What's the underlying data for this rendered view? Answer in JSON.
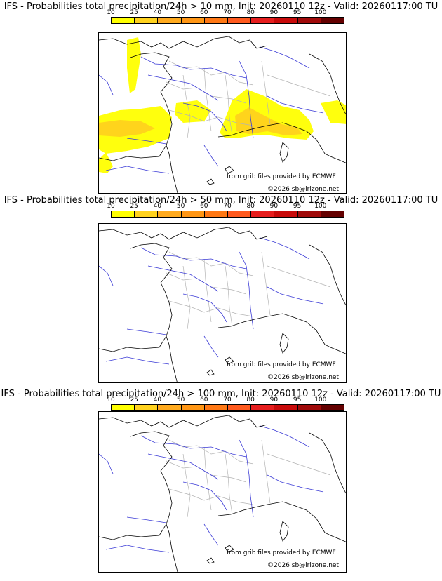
{
  "scale": {
    "labels": [
      "10",
      "25",
      "40",
      "50",
      "60",
      "70",
      "80",
      "90",
      "95",
      "100"
    ],
    "colors": [
      "#ffff00",
      "#ffd21e",
      "#ffaa1e",
      "#ff9614",
      "#ff7814",
      "#ff5a1e",
      "#e61e1e",
      "#c80a0a",
      "#a00a0a",
      "#640000"
    ]
  },
  "panels": [
    {
      "title": "IFS - Probabilities total precipitation/24h > 10 mm, Init: 20260110 12z - Valid: 20260117:00 TU",
      "credit_source": "from grib files provided by ECMWF",
      "credit_copyright": "©2026 sb@irizone.net",
      "has_precip": true
    },
    {
      "title": "IFS - Probabilities total precipitation/24h > 50 mm, Init: 20260110 12z - Valid: 20260117:00 TU",
      "credit_source": "from grib files provided by ECMWF",
      "credit_copyright": "©2026 sb@irizone.net",
      "has_precip": false
    },
    {
      "title": "IFS - Probabilities total precipitation/24h > 100 mm, Init: 20260110 12z - Valid: 20260117:00 TU",
      "credit_source": "from grib files provided by ECMWF",
      "credit_copyright": "©2026 sb@irizone.net",
      "has_precip": false
    }
  ],
  "colors": {
    "coast": "#000000",
    "rivers": "#3a3ad6",
    "borders": "#b4b4b4",
    "precip_low": "#ffff00",
    "precip_mid": "#ffd21e",
    "precip_high": "#ffaa1e"
  }
}
